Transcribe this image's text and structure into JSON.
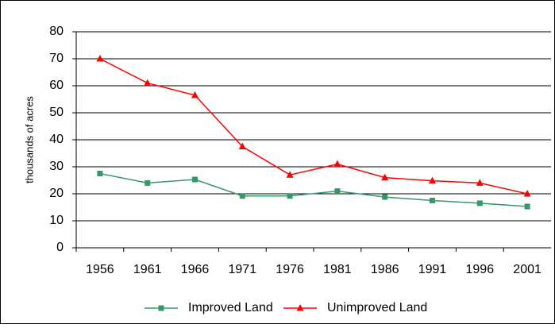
{
  "chart_data": {
    "type": "line",
    "y_label": "thousands of acres",
    "categories": [
      "1956",
      "1961",
      "1966",
      "1971",
      "1976",
      "1981",
      "1986",
      "1991",
      "1996",
      "2001"
    ],
    "series": [
      {
        "name": "Improved Land",
        "color": "#339966",
        "marker": "square",
        "values": [
          27.5,
          24,
          25.3,
          19.2,
          19.2,
          21,
          18.8,
          17.5,
          16.5,
          15.3
        ]
      },
      {
        "name": "Unimproved Land",
        "color": "#ff0000",
        "marker": "triangle",
        "values": [
          70,
          61,
          56.5,
          37.5,
          27,
          31,
          26,
          24.8,
          24,
          20
        ]
      }
    ],
    "ylim": [
      0,
      80
    ],
    "yticks": [
      0,
      10,
      20,
      30,
      40,
      50,
      60,
      70,
      80
    ],
    "grid": true
  }
}
